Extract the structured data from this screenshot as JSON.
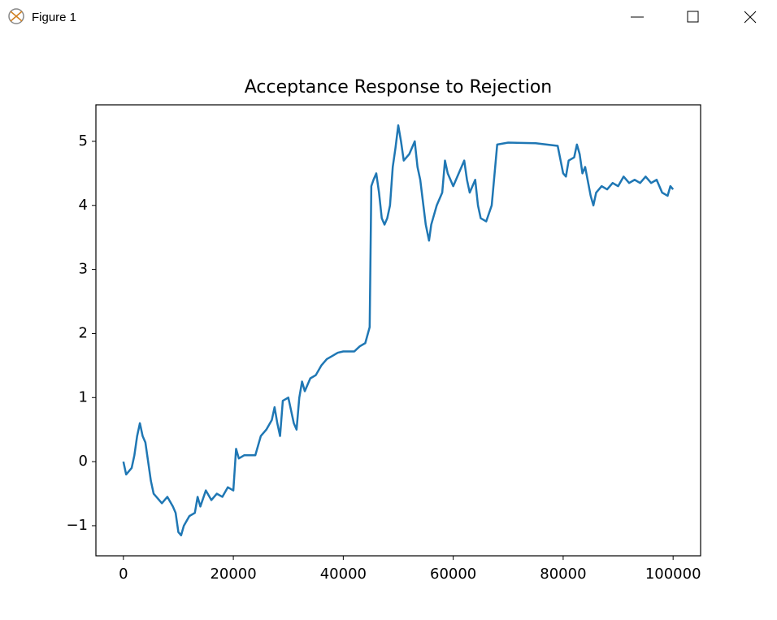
{
  "window": {
    "title": "Figure 1"
  },
  "chart_data": {
    "type": "line",
    "title": "Acceptance Response to Rejection",
    "x": [
      0,
      500,
      1000,
      1500,
      2000,
      2500,
      3000,
      3500,
      4000,
      4500,
      5000,
      5500,
      6000,
      7000,
      8000,
      9000,
      9500,
      10000,
      10500,
      11000,
      12000,
      13000,
      13500,
      14000,
      15000,
      16000,
      17000,
      18000,
      19000,
      20000,
      20500,
      21000,
      22000,
      23000,
      24000,
      25000,
      26000,
      27000,
      27500,
      28000,
      28500,
      29000,
      30000,
      30500,
      31000,
      31500,
      32000,
      32500,
      33000,
      34000,
      35000,
      36000,
      37000,
      38000,
      39000,
      40000,
      41000,
      42000,
      43000,
      44000,
      44800,
      45100,
      45500,
      46000,
      46500,
      47000,
      47500,
      48000,
      48500,
      49000,
      49500,
      50000,
      50500,
      51000,
      52000,
      53000,
      53500,
      54000,
      55000,
      55600,
      56000,
      57000,
      58000,
      58500,
      59000,
      60000,
      61000,
      62000,
      62500,
      63000,
      64000,
      64500,
      65000,
      66000,
      67000,
      68000,
      70000,
      75000,
      79000,
      80000,
      80500,
      81000,
      82000,
      82500,
      83000,
      83500,
      84000,
      85000,
      85500,
      86000,
      87000,
      88000,
      89000,
      90000,
      91000,
      92000,
      93000,
      94000,
      95000,
      96000,
      97000,
      98000,
      99000,
      99500,
      100000
    ],
    "series": [
      {
        "color": "#1f77b4",
        "values": [
          0.0,
          -0.2,
          -0.15,
          -0.1,
          0.1,
          0.4,
          0.6,
          0.4,
          0.3,
          0.0,
          -0.3,
          -0.5,
          -0.55,
          -0.65,
          -0.55,
          -0.7,
          -0.8,
          -1.1,
          -1.15,
          -1.0,
          -0.85,
          -0.8,
          -0.55,
          -0.7,
          -0.45,
          -0.6,
          -0.5,
          -0.55,
          -0.4,
          -0.45,
          0.2,
          0.05,
          0.1,
          0.1,
          0.1,
          0.4,
          0.5,
          0.65,
          0.85,
          0.6,
          0.4,
          0.95,
          1.0,
          0.8,
          0.6,
          0.5,
          1.0,
          1.25,
          1.1,
          1.3,
          1.35,
          1.5,
          1.6,
          1.65,
          1.7,
          1.72,
          1.72,
          1.72,
          1.8,
          1.85,
          2.1,
          4.3,
          4.4,
          4.5,
          4.2,
          3.8,
          3.7,
          3.8,
          4.0,
          4.6,
          4.9,
          5.25,
          5.0,
          4.7,
          4.8,
          5.0,
          4.6,
          4.4,
          3.7,
          3.45,
          3.7,
          4.0,
          4.2,
          4.7,
          4.5,
          4.3,
          4.5,
          4.7,
          4.4,
          4.2,
          4.4,
          4.0,
          3.8,
          3.75,
          4.0,
          4.95,
          4.98,
          4.97,
          4.93,
          4.5,
          4.45,
          4.7,
          4.75,
          4.95,
          4.8,
          4.5,
          4.6,
          4.15,
          4.0,
          4.2,
          4.3,
          4.25,
          4.35,
          4.3,
          4.45,
          4.35,
          4.4,
          4.35,
          4.45,
          4.35,
          4.4,
          4.2,
          4.15,
          4.3,
          4.25
        ]
      }
    ],
    "xlim": [
      -5000,
      105000
    ],
    "xticks": [
      0,
      20000,
      40000,
      60000,
      80000,
      100000
    ],
    "ylim": [
      -1.47,
      5.57
    ],
    "yticks": [
      -1,
      0,
      1,
      2,
      3,
      4,
      5
    ]
  }
}
